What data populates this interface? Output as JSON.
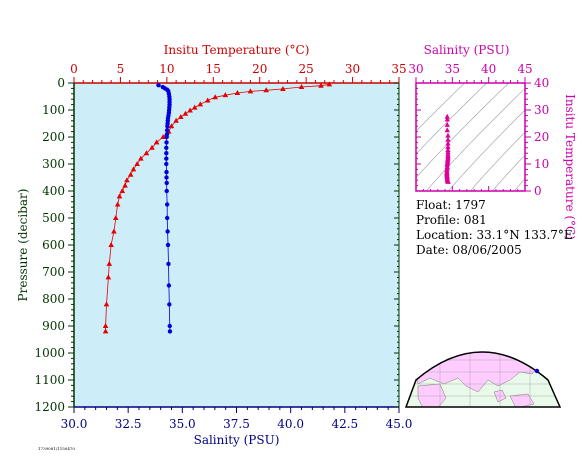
{
  "chart_data": [
    {
      "type": "line",
      "title": "",
      "x_top_label": "Insitu Temperature (°C)",
      "x_top_ticks": [
        0,
        5,
        10,
        15,
        20,
        25,
        30,
        35
      ],
      "x_top_range": [
        0,
        35
      ],
      "x_bottom_label": "Salinity (PSU)",
      "x_bottom_ticks": [
        "30.0",
        "32.5",
        "35.0",
        "37.5",
        "40.0",
        "42.5",
        "45.0"
      ],
      "x_bottom_range": [
        30,
        45
      ],
      "ylabel": "Pressure (decibar)",
      "y_ticks": [
        0,
        100,
        200,
        300,
        400,
        500,
        600,
        700,
        800,
        900,
        1000,
        1100,
        1200
      ],
      "ylim": [
        0,
        1200
      ],
      "y_inverted": true,
      "background": "#cdeef8",
      "series": [
        {
          "name": "Insitu Temperature",
          "axis": "top",
          "color": "#e60000",
          "marker": "triangle",
          "points": [
            [
              27.5,
              5
            ],
            [
              26.6,
              10
            ],
            [
              24.5,
              15
            ],
            [
              22.5,
              22
            ],
            [
              20.7,
              27
            ],
            [
              19.0,
              31
            ],
            [
              17.6,
              37
            ],
            [
              16.3,
              45
            ],
            [
              15.2,
              53
            ],
            [
              14.4,
              65
            ],
            [
              13.6,
              79
            ],
            [
              13.0,
              91
            ],
            [
              12.5,
              102
            ],
            [
              12.0,
              114
            ],
            [
              11.5,
              126
            ],
            [
              11.0,
              140
            ],
            [
              10.5,
              160
            ],
            [
              10.2,
              180
            ],
            [
              9.6,
              200
            ],
            [
              8.9,
              220
            ],
            [
              8.4,
              240
            ],
            [
              7.8,
              260
            ],
            [
              7.2,
              280
            ],
            [
              6.8,
              300
            ],
            [
              6.4,
              320
            ],
            [
              6.1,
              340
            ],
            [
              5.7,
              360
            ],
            [
              5.5,
              380
            ],
            [
              5.2,
              400
            ],
            [
              4.9,
              420
            ],
            [
              4.7,
              450
            ],
            [
              4.5,
              500
            ],
            [
              4.3,
              550
            ],
            [
              4.0,
              600
            ],
            [
              3.8,
              670
            ],
            [
              3.7,
              720
            ],
            [
              3.5,
              820
            ],
            [
              3.4,
              900
            ],
            [
              3.4,
              920
            ]
          ]
        },
        {
          "name": "Salinity",
          "axis": "bottom",
          "color": "#0000dd",
          "marker": "circle",
          "points": [
            [
              33.9,
              8
            ],
            [
              34.1,
              15
            ],
            [
              34.2,
              20
            ],
            [
              34.3,
              25
            ],
            [
              34.35,
              30
            ],
            [
              34.38,
              40
            ],
            [
              34.4,
              50
            ],
            [
              34.41,
              60
            ],
            [
              34.41,
              70
            ],
            [
              34.41,
              80
            ],
            [
              34.4,
              90
            ],
            [
              34.39,
              100
            ],
            [
              34.38,
              110
            ],
            [
              34.36,
              120
            ],
            [
              34.34,
              130
            ],
            [
              34.33,
              140
            ],
            [
              34.32,
              150
            ],
            [
              34.31,
              160
            ],
            [
              34.3,
              175
            ],
            [
              34.29,
              190
            ],
            [
              34.28,
              200
            ],
            [
              34.27,
              220
            ],
            [
              34.26,
              240
            ],
            [
              34.26,
              260
            ],
            [
              34.26,
              280
            ],
            [
              34.26,
              300
            ],
            [
              34.27,
              330
            ],
            [
              34.27,
              350
            ],
            [
              34.28,
              370
            ],
            [
              34.28,
              400
            ],
            [
              34.3,
              450
            ],
            [
              34.3,
              500
            ],
            [
              34.32,
              550
            ],
            [
              34.34,
              600
            ],
            [
              34.36,
              670
            ],
            [
              34.38,
              750
            ],
            [
              34.4,
              820
            ],
            [
              34.42,
              900
            ],
            [
              34.43,
              920
            ]
          ]
        }
      ]
    },
    {
      "type": "scatter",
      "title": "",
      "x_label": "Salinity (PSU)",
      "x_ticks": [
        30,
        35,
        40,
        45
      ],
      "x_range": [
        30,
        45
      ],
      "y_label": "Insitu Temperature (°C)",
      "y_ticks": [
        0,
        10,
        20,
        30,
        40
      ],
      "ylim": [
        0,
        40
      ],
      "color": "#dd0099",
      "marker": "triangle",
      "points": [
        [
          34.3,
          27.5
        ],
        [
          34.3,
          26.5
        ],
        [
          34.3,
          24.5
        ],
        [
          34.3,
          22.5
        ],
        [
          34.4,
          20.5
        ],
        [
          34.4,
          19.0
        ],
        [
          34.4,
          17.6
        ],
        [
          34.4,
          16.3
        ],
        [
          34.4,
          15.2
        ],
        [
          34.4,
          14.4
        ],
        [
          34.4,
          13.6
        ],
        [
          34.4,
          13.0
        ],
        [
          34.4,
          12.5
        ],
        [
          34.4,
          12.0
        ],
        [
          34.35,
          11.5
        ],
        [
          34.35,
          11.0
        ],
        [
          34.35,
          10.5
        ],
        [
          34.3,
          10.2
        ],
        [
          34.3,
          9.6
        ],
        [
          34.3,
          8.9
        ],
        [
          34.3,
          8.4
        ],
        [
          34.25,
          7.8
        ],
        [
          34.25,
          7.2
        ],
        [
          34.25,
          6.8
        ],
        [
          34.25,
          6.4
        ],
        [
          34.25,
          6.1
        ],
        [
          34.27,
          5.7
        ],
        [
          34.27,
          5.5
        ],
        [
          34.28,
          5.2
        ],
        [
          34.3,
          4.9
        ],
        [
          34.3,
          4.5
        ],
        [
          34.32,
          4.0
        ],
        [
          34.36,
          3.7
        ],
        [
          34.4,
          3.5
        ],
        [
          34.43,
          3.4
        ]
      ]
    }
  ],
  "info": {
    "float": "Float:  1797",
    "profile": "Profile:  081",
    "location": "Location:  33.1°N  133.7°E",
    "date": "Date:  08/06/2005"
  },
  "footnote": "1739081/1150470",
  "colors": {
    "temperature": "#cc0000",
    "salinity": "#cc00aa",
    "axis_dark": "#003300",
    "axis_blue": "#000080",
    "map_land": "#ffccff",
    "map_ocean": "#eafaea"
  }
}
